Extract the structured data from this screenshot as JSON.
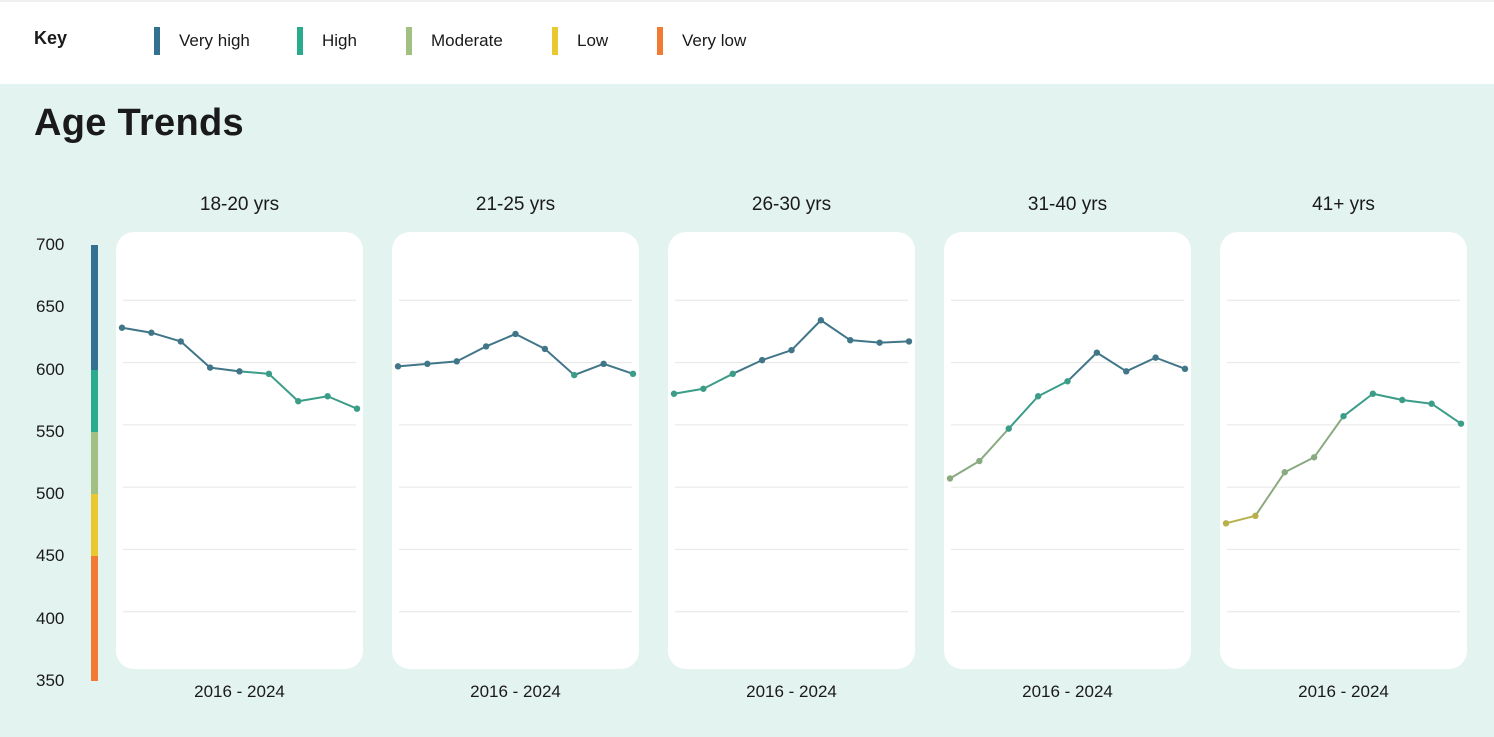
{
  "key": {
    "title": "Key",
    "items": [
      {
        "label": "Very high",
        "color": "#34708f"
      },
      {
        "label": "High",
        "color": "#2aab8e"
      },
      {
        "label": "Moderate",
        "color": "#a3c083"
      },
      {
        "label": "Low",
        "color": "#e9c830"
      },
      {
        "label": "Very low",
        "color": "#f27a35"
      }
    ]
  },
  "page_title": "Age Trends",
  "chart_data": {
    "type": "line",
    "ylim": [
      350,
      700
    ],
    "y_ticks": [
      "700",
      "650",
      "600",
      "550",
      "500",
      "450",
      "400",
      "350"
    ],
    "grid": true,
    "level_scale": [
      {
        "level": "Very high",
        "from": 600,
        "to": 700,
        "color": "#34708f"
      },
      {
        "level": "High",
        "from": 550,
        "to": 600,
        "color": "#2aab8e"
      },
      {
        "level": "Moderate",
        "from": 500,
        "to": 550,
        "color": "#a3c083"
      },
      {
        "level": "Low",
        "from": 450,
        "to": 500,
        "color": "#e9c830"
      },
      {
        "level": "Very low",
        "from": 350,
        "to": 450,
        "color": "#f27a35"
      }
    ],
    "panels": [
      {
        "title": "18-20 yrs",
        "period": "2016 - 2024",
        "values": [
          636,
          632,
          625,
          604,
          601,
          599,
          577,
          581,
          571
        ]
      },
      {
        "title": "21-25 yrs",
        "period": "2016 - 2024",
        "values": [
          605,
          607,
          609,
          621,
          631,
          619,
          598,
          607,
          599
        ]
      },
      {
        "title": "26-30 yrs",
        "period": "2016 - 2024",
        "values": [
          583,
          587,
          599,
          610,
          618,
          642,
          626,
          624,
          625
        ]
      },
      {
        "title": "31-40 yrs",
        "period": "2016 - 2024",
        "values": [
          515,
          529,
          555,
          581,
          593,
          616,
          601,
          612,
          603
        ]
      },
      {
        "title": "41+ yrs",
        "period": "2016 - 2024",
        "values": [
          479,
          485,
          520,
          532,
          565,
          583,
          578,
          575,
          559
        ]
      }
    ]
  }
}
